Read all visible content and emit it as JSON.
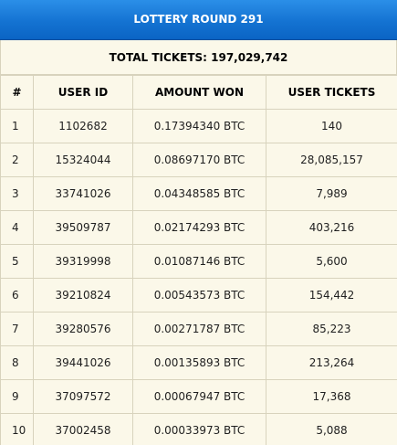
{
  "banner": {
    "title": "LOTTERY ROUND 291"
  },
  "summary": {
    "total_tickets": "TOTAL TICKETS: 197,029,742"
  },
  "table": {
    "headers": [
      "#",
      "USER ID",
      "AMOUNT WON",
      "USER TICKETS"
    ],
    "rows": [
      [
        "1",
        "1102682",
        "0.17394340 BTC",
        "140"
      ],
      [
        "2",
        "15324044",
        "0.08697170 BTC",
        "28,085,157"
      ],
      [
        "3",
        "33741026",
        "0.04348585 BTC",
        "7,989"
      ],
      [
        "4",
        "39509787",
        "0.02174293 BTC",
        "403,216"
      ],
      [
        "5",
        "39319998",
        "0.01087146 BTC",
        "5,600"
      ],
      [
        "6",
        "39210824",
        "0.00543573 BTC",
        "154,442"
      ],
      [
        "7",
        "39280576",
        "0.00271787 BTC",
        "85,223"
      ],
      [
        "8",
        "39441026",
        "0.00135893 BTC",
        "213,264"
      ],
      [
        "9",
        "37097572",
        "0.00067947 BTC",
        "17,368"
      ],
      [
        "10",
        "37002458",
        "0.00033973 BTC",
        "5,088"
      ]
    ]
  },
  "colors": {
    "banner_top": "#2b8fe8",
    "banner_bottom": "#0b64c4",
    "table_background": "#fbf8e9",
    "grid_line": "#d8d3bd"
  }
}
